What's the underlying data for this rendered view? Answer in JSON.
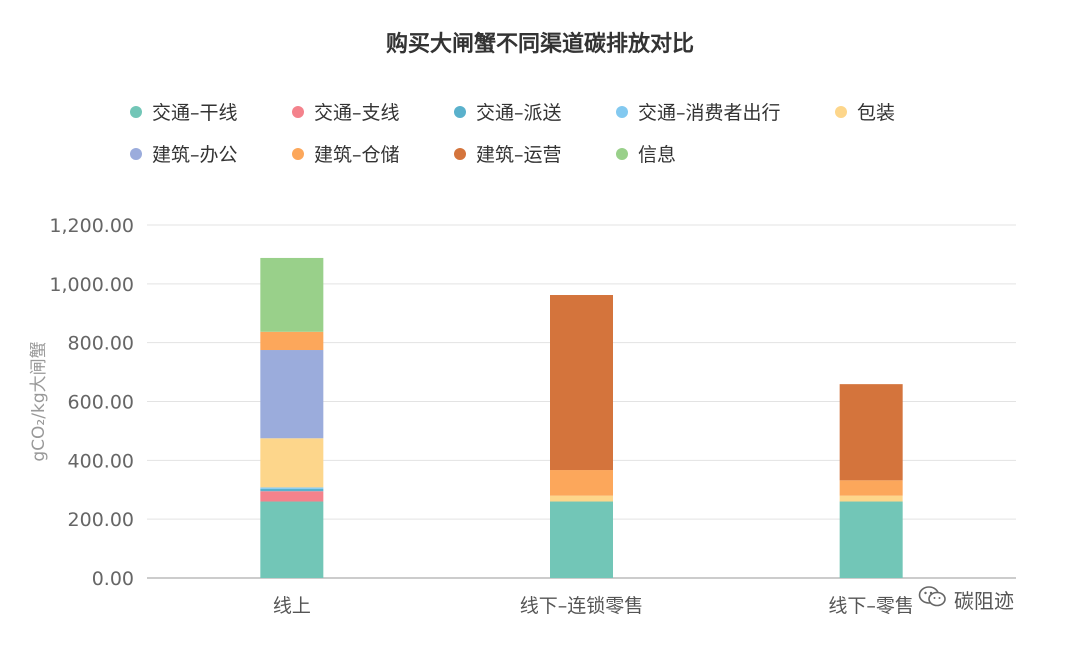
{
  "chart_data": {
    "type": "bar",
    "stacked": true,
    "title": "购买大闸蟹不同渠道碳排放对比",
    "ylabel": "gCO₂/kg大闸蟹",
    "xlabel": "",
    "ylim": [
      0,
      1200
    ],
    "yticks": [
      "0.00",
      "200.00",
      "400.00",
      "600.00",
      "800.00",
      "1,000.00",
      "1,200.00"
    ],
    "ytick_values": [
      0,
      200,
      400,
      600,
      800,
      1000,
      1200
    ],
    "grid": true,
    "legend_position": "top",
    "categories": [
      "线上",
      "线下–连锁零售",
      "线下–零售"
    ],
    "series": [
      {
        "name": "交通–干线",
        "color": "#72c6b7",
        "values": [
          260,
          260,
          260
        ]
      },
      {
        "name": "交通–支线",
        "color": "#f4828c",
        "values": [
          35,
          0,
          0
        ]
      },
      {
        "name": "交通–派送",
        "color": "#5ab1cc",
        "values": [
          8,
          0,
          0
        ]
      },
      {
        "name": "交通–消费者出行",
        "color": "#83c9f0",
        "values": [
          5,
          0,
          0
        ]
      },
      {
        "name": "包装",
        "color": "#fdd68b",
        "values": [
          167,
          20,
          20
        ]
      },
      {
        "name": "建筑–办公",
        "color": "#9bacdc",
        "values": [
          300,
          0,
          0
        ]
      },
      {
        "name": "建筑–仓储",
        "color": "#fca75b",
        "values": [
          62,
          87,
          52
        ]
      },
      {
        "name": "建筑–运营",
        "color": "#d4743c",
        "values": [
          0,
          595,
          327
        ]
      },
      {
        "name": "信息",
        "color": "#99d08a",
        "values": [
          251,
          0,
          0
        ]
      }
    ]
  },
  "watermark": {
    "text": "碳阻迹",
    "icon": "wechat-icon"
  }
}
